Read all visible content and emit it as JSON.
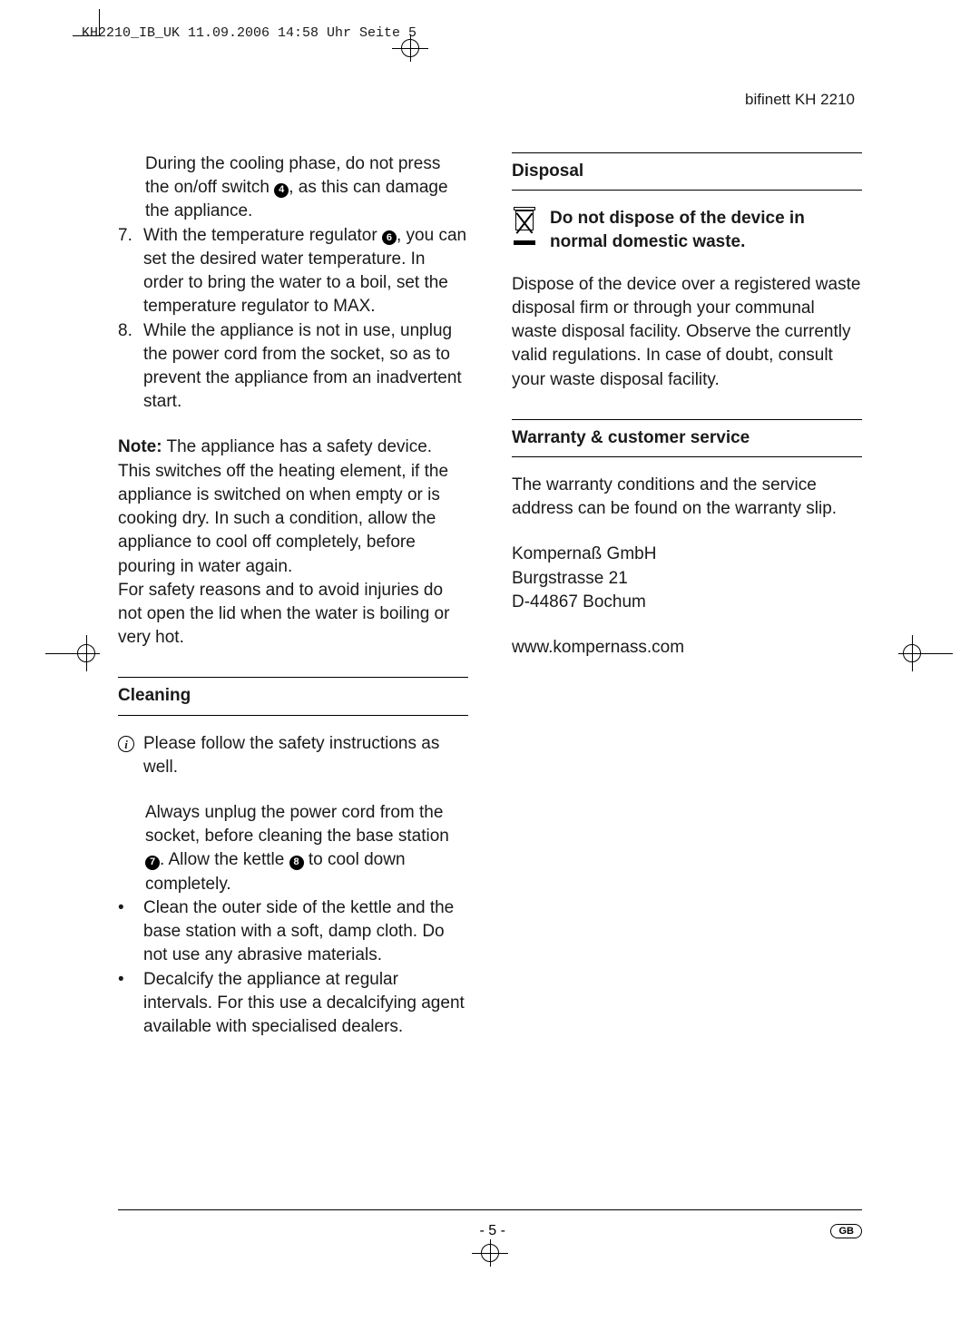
{
  "print_header": "KH2210_IB_UK  11.09.2006  14:58 Uhr  Seite 5",
  "brand": "bifinett   KH 2210",
  "left": {
    "cooling_phase": "During the cooling phase, do not press the on/off switch ",
    "cooling_phase2": ", as this can damage the appliance.",
    "ref_switch": "4",
    "item7_pre": "With the temperature regulator ",
    "ref_reg": "6",
    "item7_post": ", you can set the desired water tempera­ture. In order to bring the water to a boil, set the temperature regulator to MAX.",
    "item8": "While the appliance is not in use, unplug the power cord from the socket, so as to prevent the appliance from an inadvertent start.",
    "note_label": "Note:",
    "note_body": " The appliance has a safety device. This switches off the heating element, if the appliance is switched on when empty or is cooking dry. In such a condi­tion, allow the appliance to cool off completely, before pouring in water again.",
    "safety_body": "For safety reasons and to avoid injuries do not open the lid when the water is boiling or very hot.",
    "cleaning_head": "Cleaning",
    "cleaning_info": "Please follow the safety instructions as well.",
    "cleaning_p1_a": "Always unplug the power cord from the socket, before cleaning the base station ",
    "ref_base": "7",
    "cleaning_p1_b": ". Allow the kettle ",
    "ref_kettle": "8",
    "cleaning_p1_c": " to cool down completely.",
    "cleaning_b1": "Clean the outer side of the kettle and the base station with a soft, damp cloth. Do not use any abrasive materials.",
    "cleaning_b2": "Decalcify the appliance at regular intervals. For this use a decalcifying agent available with specialised dealers."
  },
  "right": {
    "disposal_head": "Disposal",
    "disposal_bold": "Do not dispose of the device in normal domestic waste.",
    "disposal_body": "Dispose of the device over a registered waste disposal firm or through your communal waste disposal facility. Observe the currently valid regulations. In case of doubt, consult your waste disposal facility.",
    "warranty_head": "Warranty & customer service",
    "warranty_body": "The warranty conditions and the service address can be found on the warranty slip.",
    "addr1": "Kompernaß GmbH",
    "addr2": "Burgstrasse 21",
    "addr3": "D-44867 Bochum",
    "url": "www.kompernass.com"
  },
  "footer": {
    "page": "- 5 -",
    "region": "GB"
  }
}
